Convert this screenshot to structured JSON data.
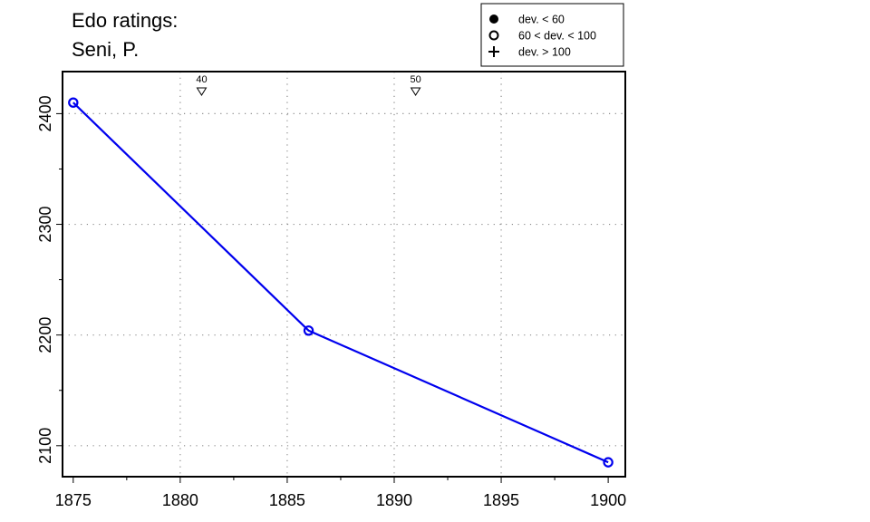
{
  "chart_data": {
    "type": "line",
    "title_lines": [
      "Edo ratings:",
      "Seni, P."
    ],
    "xlabel": "",
    "ylabel": "",
    "xlim": [
      1874.5,
      1900.8
    ],
    "ylim": [
      2072,
      2438
    ],
    "x_ticks": [
      1875,
      1880,
      1885,
      1890,
      1895,
      1900
    ],
    "y_ticks": [
      2100,
      2200,
      2300,
      2400
    ],
    "x_grid": [
      1880,
      1885,
      1890,
      1895
    ],
    "y_grid": [
      2100,
      2200,
      2300,
      2400
    ],
    "grid": true,
    "grid_style": "dotted",
    "series": [
      {
        "color": "#0000ee",
        "points": [
          {
            "x": 1875,
            "y": 2410,
            "marker": "open-circle"
          },
          {
            "x": 1886,
            "y": 2204,
            "marker": "open-circle"
          },
          {
            "x": 1900,
            "y": 2085,
            "marker": "open-circle"
          }
        ]
      }
    ],
    "top_markers": [
      {
        "x": 1881,
        "label": "40"
      },
      {
        "x": 1891,
        "label": "50"
      }
    ],
    "legend": {
      "placement": "top-right, outside plot",
      "entries": [
        {
          "symbol": "filled-circle",
          "label": "dev. < 60"
        },
        {
          "symbol": "open-circle",
          "label": "60 < dev. < 100"
        },
        {
          "symbol": "plus",
          "label": "dev. > 100"
        }
      ]
    }
  }
}
